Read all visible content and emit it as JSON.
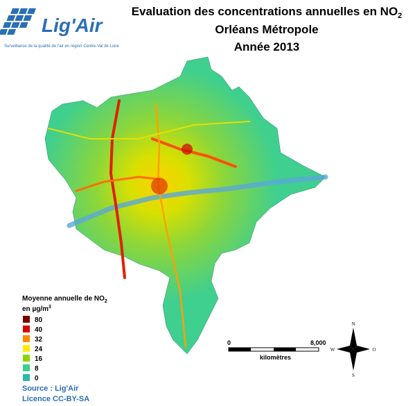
{
  "logo": {
    "name": "Lig'Air",
    "tagline": "Surveillance de la qualité de l'air en région Centre-Val de Loire"
  },
  "title": {
    "line1": "Evaluation des concentrations annuelles en NO",
    "line1_sub": "2",
    "line2": "Orléans Métropole",
    "line3": "Année 2013"
  },
  "legend": {
    "title": "Moyenne annuelle de NO",
    "title_sub": "2",
    "unit": "en µg/m",
    "unit_sup": "3",
    "items": [
      {
        "value": 80,
        "color": "#7a0000"
      },
      {
        "value": 40,
        "color": "#d90000"
      },
      {
        "value": 32,
        "color": "#ff8a00"
      },
      {
        "value": 24,
        "color": "#ffee00"
      },
      {
        "value": 16,
        "color": "#8ed400"
      },
      {
        "value": 8,
        "color": "#3ccf8a"
      },
      {
        "value": 0,
        "color": "#2ab8a8"
      }
    ]
  },
  "scale_bar": {
    "start": "0",
    "end": "8,000",
    "unit": "kilomètres"
  },
  "compass": {
    "north": "N",
    "west": "W",
    "east": "O",
    "south": "S"
  },
  "source": "Source : Lig'Air",
  "licence": "Licence CC-BY-SA"
}
